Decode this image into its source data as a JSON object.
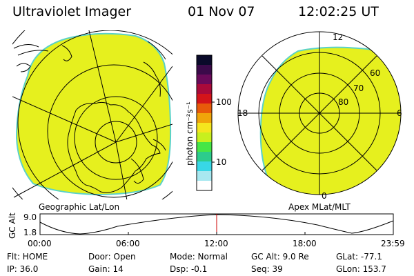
{
  "header": {
    "app_title": "Ultraviolet Imager",
    "date": "01 Nov 07",
    "time": "12:02:25 UT"
  },
  "panels": {
    "left_label": "Geographic Lat/Lon",
    "right_label": "Apex MLat/MLT",
    "right_mlt_labels": [
      "12",
      "18",
      "6",
      "0"
    ],
    "right_lat_labels": [
      "60",
      "70",
      "80"
    ]
  },
  "colorbar": {
    "label": "photon cm⁻²s⁻¹",
    "ticks": [
      "100",
      "10"
    ],
    "colors": [
      "#0a0a2a",
      "#3b0a4a",
      "#6a0a5a",
      "#aa0a3a",
      "#d4141a",
      "#e85a0a",
      "#f0a50a",
      "#f5e61e",
      "#c8f01e",
      "#46e646",
      "#2ccc8c",
      "#38d7e6",
      "#a8e8f0",
      "#ffffff"
    ]
  },
  "altitude_strip": {
    "axis_label": "GC Alt",
    "y_ticks": [
      "9.0",
      "1.8"
    ],
    "x_ticks": [
      "00:00",
      "06:00",
      "12:00",
      "18:00",
      "23:59"
    ],
    "marker_time": "12:02:25",
    "curve_color": "#000000",
    "marker_color": "#cc0000"
  },
  "status": {
    "flt": "Flt: HOME",
    "ip": "IP: 36.0",
    "door": "Door: Open",
    "gain": "Gain: 14",
    "mode": "Mode: Normal",
    "dsp": "Dsp:   -0.1",
    "gc_alt": "GC Alt: 9.0 Re",
    "seq": "Seq: 39",
    "glat": "GLat: -77.1",
    "glon": "GLon: 153.7"
  },
  "colors": {
    "image_fill": "#e6f01e",
    "image_edge": "#5ad2c8"
  }
}
